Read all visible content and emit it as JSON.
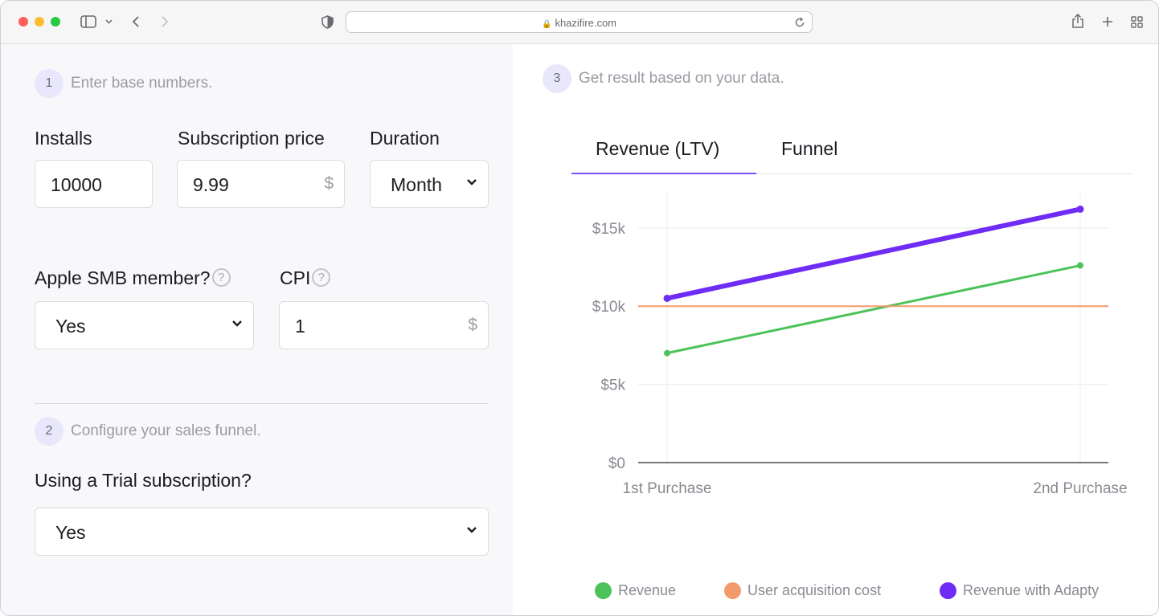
{
  "browser": {
    "url": "khazifire.com"
  },
  "step1": {
    "number": "1",
    "text": "Enter base numbers."
  },
  "installs": {
    "label": "Installs",
    "value": "10000"
  },
  "subscription_price": {
    "label": "Subscription price",
    "value": "9.99",
    "unit": "$"
  },
  "duration": {
    "label": "Duration",
    "value": "Month"
  },
  "apple_smb": {
    "label": "Apple SMB member?",
    "value": "Yes",
    "help": "?"
  },
  "cpi": {
    "label": "CPI",
    "value": "1",
    "unit": "$",
    "help": "?"
  },
  "step2": {
    "number": "2",
    "text": "Configure your sales funnel."
  },
  "trial": {
    "label": "Using a Trial subscription?",
    "value": "Yes"
  },
  "step3": {
    "number": "3",
    "text": "Get result based on your data."
  },
  "tabs": [
    {
      "label": "Revenue (LTV)",
      "active": true
    },
    {
      "label": "Funnel",
      "active": false
    }
  ],
  "chart_data": {
    "type": "line",
    "categories": [
      "1st Purchase",
      "2nd Purchase"
    ],
    "y_ticks": [
      "$0",
      "$5k",
      "$10k",
      "$15k"
    ],
    "y_tick_values": [
      0,
      5000,
      10000,
      15000
    ],
    "ylim": [
      0,
      17300
    ],
    "grid": true,
    "legend_position": "bottom",
    "series": [
      {
        "name": "Revenue",
        "values": [
          7000,
          12600
        ],
        "color": "#4cc35a"
      },
      {
        "name": "User acquisition cost",
        "values": [
          10000,
          10000
        ],
        "color": "#f29a6b"
      },
      {
        "name": "Revenue with Adapty",
        "values": [
          10500,
          16200
        ],
        "color": "#6e2cf5"
      }
    ]
  }
}
